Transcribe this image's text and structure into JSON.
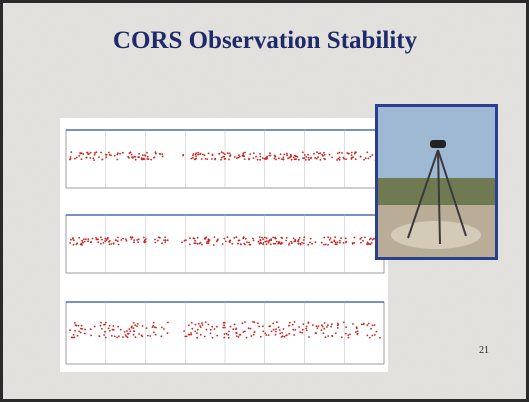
{
  "slide": {
    "title": "CORS Observation Stability",
    "page_number": "21"
  }
}
